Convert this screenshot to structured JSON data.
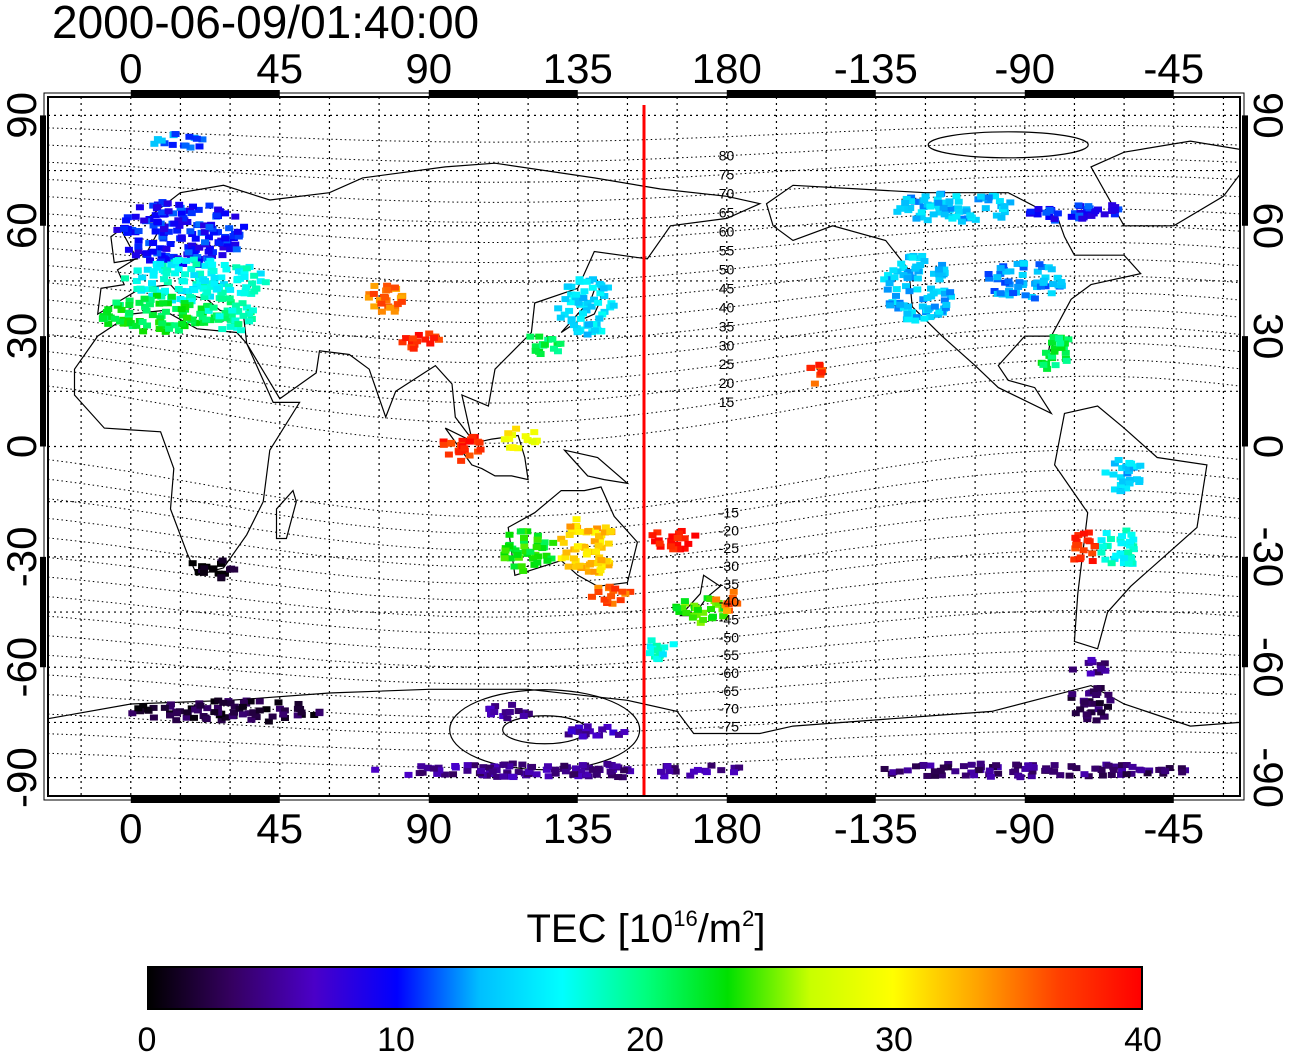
{
  "title": "2000-06-09/01:40:00",
  "map": {
    "type": "map",
    "projection": "equirectangular",
    "lon_range": [
      -25,
      335
    ],
    "lat_range": [
      -95,
      95
    ],
    "x_ticks": [
      "0",
      "45",
      "90",
      "135",
      "180",
      "-135",
      "-90",
      "-45"
    ],
    "x_tick_values": [
      0,
      45,
      90,
      135,
      180,
      225,
      270,
      315
    ],
    "y_ticks": [
      "-90",
      "-60",
      "-30",
      "0",
      "30",
      "60",
      "90"
    ],
    "y_tick_values": [
      -90,
      -60,
      -30,
      0,
      30,
      60,
      90
    ],
    "grid": "dotted every 15 degrees",
    "meridian_marker_lon": 155,
    "meridian_marker_color": "#ff0000",
    "magnetic_lat_labels": [
      "80",
      "75",
      "70",
      "65",
      "60",
      "55",
      "50",
      "45",
      "40",
      "35",
      "30",
      "25",
      "20",
      "15",
      "-15",
      "-20",
      "-25",
      "-30",
      "-35",
      "-40",
      "-45",
      "-50",
      "-55",
      "-60",
      "-65",
      "-70",
      "-75"
    ],
    "magnetic_lat_label_lon": 180,
    "tec_clusters": [
      {
        "lon": 15,
        "lat": 58,
        "rx": 20,
        "ry": 9,
        "tec": 10
      },
      {
        "lon": 20,
        "lat": 45,
        "rx": 22,
        "ry": 6,
        "tec": 17
      },
      {
        "lon": 8,
        "lat": 36,
        "rx": 18,
        "ry": 5,
        "tec": 22
      },
      {
        "lon": 15,
        "lat": 83,
        "rx": 9,
        "ry": 2,
        "tec": 12
      },
      {
        "lon": 30,
        "lat": 36,
        "rx": 8,
        "ry": 5,
        "tec": 19
      },
      {
        "lon": 76,
        "lat": 40,
        "rx": 7,
        "ry": 4,
        "tec": 35
      },
      {
        "lon": 88,
        "lat": 28,
        "rx": 6,
        "ry": 3,
        "tec": 38
      },
      {
        "lon": 138,
        "lat": 38,
        "rx": 9,
        "ry": 8,
        "tec": 15
      },
      {
        "lon": 125,
        "lat": 28,
        "rx": 6,
        "ry": 3,
        "tec": 21
      },
      {
        "lon": 100,
        "lat": 0,
        "rx": 6,
        "ry": 4,
        "tec": 38
      },
      {
        "lon": 118,
        "lat": 2,
        "rx": 6,
        "ry": 3,
        "tec": 30
      },
      {
        "lon": 120,
        "lat": -28,
        "rx": 8,
        "ry": 6,
        "tec": 23
      },
      {
        "lon": 138,
        "lat": -27,
        "rx": 9,
        "ry": 8,
        "tec": 32
      },
      {
        "lon": 145,
        "lat": -40,
        "rx": 6,
        "ry": 3,
        "tec": 36
      },
      {
        "lon": 165,
        "lat": -25,
        "rx": 8,
        "ry": 3,
        "tec": 39
      },
      {
        "lon": 172,
        "lat": -45,
        "rx": 8,
        "ry": 4,
        "tec": 24
      },
      {
        "lon": 180,
        "lat": -42,
        "rx": 4,
        "ry": 3,
        "tec": 35
      },
      {
        "lon": 160,
        "lat": -55,
        "rx": 5,
        "ry": 3,
        "tec": 17
      },
      {
        "lon": 206,
        "lat": 20,
        "rx": 3,
        "ry": 3,
        "tec": 37
      },
      {
        "lon": 238,
        "lat": 43,
        "rx": 11,
        "ry": 9,
        "tec": 14
      },
      {
        "lon": 270,
        "lat": 45,
        "rx": 12,
        "ry": 5,
        "tec": 13
      },
      {
        "lon": 250,
        "lat": 65,
        "rx": 20,
        "ry": 4,
        "tec": 14
      },
      {
        "lon": 285,
        "lat": 64,
        "rx": 14,
        "ry": 3,
        "tec": 10
      },
      {
        "lon": 280,
        "lat": 25,
        "rx": 6,
        "ry": 5,
        "tec": 21
      },
      {
        "lon": 288,
        "lat": -28,
        "rx": 4,
        "ry": 5,
        "tec": 38
      },
      {
        "lon": 298,
        "lat": -28,
        "rx": 6,
        "ry": 6,
        "tec": 17
      },
      {
        "lon": 300,
        "lat": -8,
        "rx": 6,
        "ry": 5,
        "tec": 14
      },
      {
        "lon": 25,
        "lat": -33,
        "rx": 7,
        "ry": 3,
        "tec": 1
      },
      {
        "lon": 30,
        "lat": -72,
        "rx": 30,
        "ry": 3,
        "tec": 2
      },
      {
        "lon": 130,
        "lat": -88,
        "rx": 60,
        "ry": 2,
        "tec": 5
      },
      {
        "lon": 270,
        "lat": -88,
        "rx": 50,
        "ry": 2,
        "tec": 4
      },
      {
        "lon": 290,
        "lat": -70,
        "rx": 7,
        "ry": 5,
        "tec": 3
      },
      {
        "lon": 290,
        "lat": -60,
        "rx": 6,
        "ry": 2,
        "tec": 5
      },
      {
        "lon": 140,
        "lat": -78,
        "rx": 10,
        "ry": 2,
        "tec": 6
      },
      {
        "lon": 115,
        "lat": -72,
        "rx": 8,
        "ry": 2,
        "tec": 5
      }
    ]
  },
  "colorbar": {
    "title_prefix": "TEC  [10",
    "title_sup1": "16",
    "title_mid": "/m",
    "title_sup2": "2",
    "title_suffix": "]",
    "ticks": [
      "0",
      "10",
      "20",
      "30",
      "40"
    ],
    "tick_values": [
      0,
      10,
      20,
      30,
      40
    ],
    "range": [
      0,
      40
    ],
    "colors": [
      "#000000",
      "#350060",
      "#4b00c8",
      "#0000ff",
      "#00bfff",
      "#00ffff",
      "#00ff7f",
      "#00e000",
      "#c8ff00",
      "#ffff00",
      "#ffa500",
      "#ff4000",
      "#ff0000"
    ]
  }
}
